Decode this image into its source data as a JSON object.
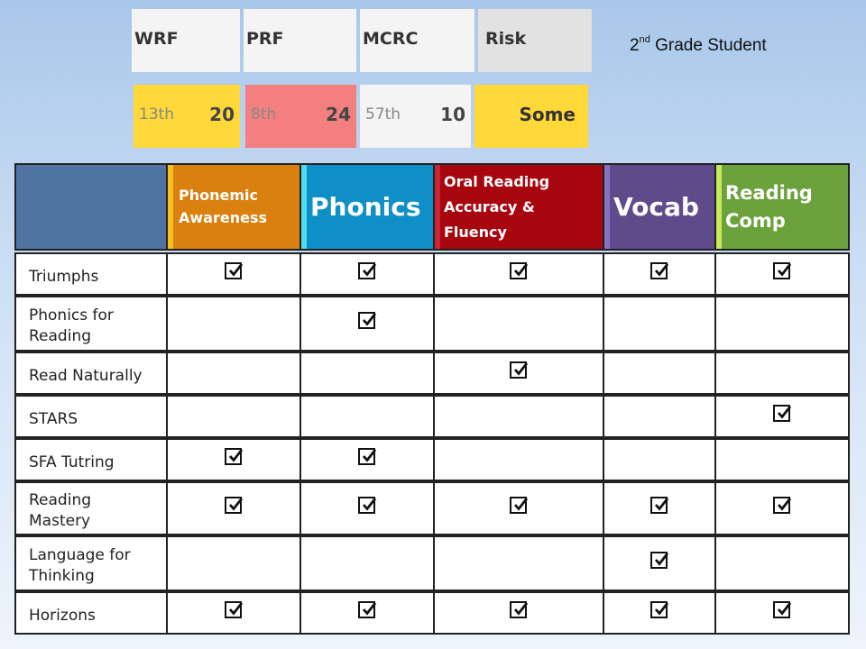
{
  "scores": {
    "headers": [
      "WRF",
      "PRF",
      "MCRC",
      "Risk"
    ],
    "cells": [
      {
        "percentile": "13th",
        "value": "20",
        "color": "#ffd839"
      },
      {
        "percentile": "8th",
        "value": "24",
        "color": "#f37f7f"
      },
      {
        "percentile": "57th",
        "value": "10",
        "color": "#f4f4f4"
      },
      {
        "risk": "Some",
        "color": "#ffd839"
      }
    ]
  },
  "subtitle": {
    "ordinal": "2",
    "suffix": "nd",
    "text": " Grade Student"
  },
  "matrix": {
    "columns": [
      {
        "label": "Phonemic Awareness",
        "color": "#d9800f",
        "bevel": "#f4c21f"
      },
      {
        "label": "Phonics",
        "color": "#0f8fc8",
        "bevel": "#4fdcef"
      },
      {
        "label": "Oral Reading Accuracy & Fluency",
        "color": "#a8060f",
        "bevel": "#cc2536"
      },
      {
        "label": "Vocab",
        "color": "#5f4b89",
        "bevel": "#8a72c2"
      },
      {
        "label": "Reading Comp",
        "color": "#6ca23c",
        "bevel": "#c9e85a"
      }
    ],
    "corner_color": "#4f74a3",
    "rows": [
      {
        "label": "Triumphs",
        "checks": [
          true,
          true,
          true,
          true,
          true
        ]
      },
      {
        "label": "Phonics for Reading",
        "checks": [
          false,
          true,
          false,
          false,
          false
        ]
      },
      {
        "label": "Read Naturally",
        "checks": [
          false,
          false,
          true,
          false,
          false
        ]
      },
      {
        "label": "STARS",
        "checks": [
          false,
          false,
          false,
          false,
          true
        ]
      },
      {
        "label": "SFA Tutring",
        "checks": [
          true,
          true,
          false,
          false,
          false
        ]
      },
      {
        "label": "Reading Mastery",
        "checks": [
          true,
          true,
          true,
          true,
          true
        ]
      },
      {
        "label": "Language for Thinking",
        "checks": [
          false,
          false,
          false,
          true,
          false
        ]
      },
      {
        "label": "Horizons",
        "checks": [
          true,
          true,
          true,
          true,
          true
        ]
      }
    ]
  }
}
